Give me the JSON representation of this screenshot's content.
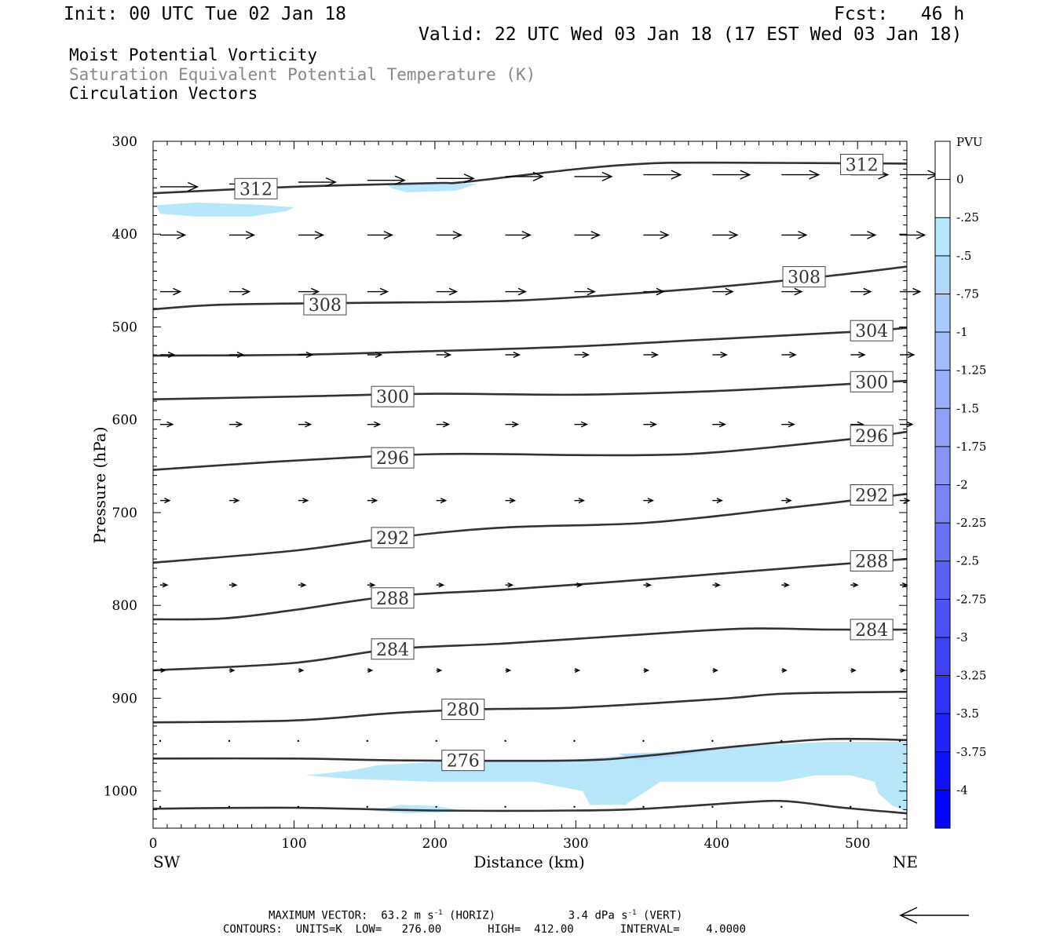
{
  "header": {
    "init": "Init: 00 UTC Tue 02 Jan 18",
    "fcst": "Fcst:   46 h",
    "valid": "Valid: 22 UTC Wed 03 Jan 18 (17 EST Wed 03 Jan 18)"
  },
  "fields": {
    "field1": "Moist Potential Vorticity",
    "field2": "Saturation Equivalent Potential Temperature (K)",
    "field3": "Circulation Vectors"
  },
  "footer": {
    "max_vector_label": "MAXIMUM VECTOR:",
    "horiz_value": "63.2 m s",
    "horiz_exp": "-1",
    "horiz_tag": "(HORIZ)",
    "vert_value": "3.4 dPa s",
    "vert_exp": "-1",
    "vert_tag": "(VERT)",
    "contours_line": "CONTOURS:  UNITS=K  LOW=   276.00       HIGH=  412.00       INTERVAL=    4.0000"
  },
  "chart_data": {
    "type": "cross-section",
    "xlabel": "Distance (km)",
    "ylabel": "Pressure (hPa)",
    "xlim": [
      0,
      535
    ],
    "ylim": [
      1040,
      300
    ],
    "x_ticks": [
      0,
      100,
      200,
      300,
      400,
      500
    ],
    "y_ticks": [
      300,
      400,
      500,
      600,
      700,
      800,
      900,
      1000
    ],
    "x_end_labels": {
      "left": "SW",
      "right": "NE"
    },
    "colorbar": {
      "unit": "PVU",
      "labels": [
        "0",
        "-.25",
        "-.5",
        "-.75",
        "-1",
        "-1.25",
        "-1.5",
        "-1.75",
        "-2",
        "-2.25",
        "-2.5",
        "-2.75",
        "-3",
        "-3.25",
        "-3.5",
        "-3.75",
        "-4"
      ],
      "colors": [
        "#ffffff",
        "#ffffff",
        "#b8e6fb",
        "#b0d8fb",
        "#a9cafa",
        "#a1bcf9",
        "#99aef8",
        "#92a0f7",
        "#8a92f6",
        "#7b82f5",
        "#6c72f5",
        "#5d62f5",
        "#4e52f5",
        "#3f42f5",
        "#3032f5",
        "#2122f6",
        "#1212f7",
        "#0404f8"
      ]
    },
    "contour_color": "#333333",
    "contours": [
      {
        "value": "312",
        "points": [
          [
            0,
            356
          ],
          [
            100,
            349
          ],
          [
            200,
            345
          ],
          [
            220,
            344
          ],
          [
            300,
            330
          ],
          [
            350,
            324
          ],
          [
            400,
            323
          ],
          [
            535,
            324
          ]
        ],
        "labels": [
          [
            73,
            351
          ],
          [
            503,
            325
          ]
        ]
      },
      {
        "value": "308",
        "points": [
          [
            0,
            481
          ],
          [
            50,
            476
          ],
          [
            150,
            474
          ],
          [
            250,
            472
          ],
          [
            330,
            465
          ],
          [
            400,
            457
          ],
          [
            480,
            445
          ],
          [
            535,
            435
          ]
        ],
        "labels": [
          [
            122,
            476
          ],
          [
            462,
            446
          ]
        ]
      },
      {
        "value": "304",
        "points": [
          [
            0,
            531
          ],
          [
            100,
            530
          ],
          [
            200,
            526
          ],
          [
            300,
            521
          ],
          [
            400,
            513
          ],
          [
            500,
            505
          ],
          [
            535,
            501
          ]
        ],
        "labels": [
          [
            510,
            504
          ]
        ]
      },
      {
        "value": "300",
        "points": [
          [
            0,
            578
          ],
          [
            100,
            575
          ],
          [
            200,
            572
          ],
          [
            300,
            573
          ],
          [
            400,
            569
          ],
          [
            500,
            561
          ],
          [
            535,
            558
          ]
        ],
        "labels": [
          [
            170,
            575
          ],
          [
            510,
            559
          ]
        ]
      },
      {
        "value": "296",
        "points": [
          [
            0,
            654
          ],
          [
            100,
            644
          ],
          [
            200,
            637
          ],
          [
            300,
            638
          ],
          [
            350,
            638
          ],
          [
            400,
            635
          ],
          [
            500,
            620
          ],
          [
            535,
            613
          ]
        ],
        "labels": [
          [
            170,
            641
          ],
          [
            510,
            617
          ]
        ]
      },
      {
        "value": "292",
        "points": [
          [
            0,
            754
          ],
          [
            100,
            741
          ],
          [
            170,
            727
          ],
          [
            250,
            716
          ],
          [
            350,
            711
          ],
          [
            450,
            695
          ],
          [
            535,
            680
          ]
        ],
        "labels": [
          [
            170,
            727
          ],
          [
            510,
            681
          ]
        ]
      },
      {
        "value": "288",
        "points": [
          [
            0,
            815
          ],
          [
            50,
            814
          ],
          [
            100,
            805
          ],
          [
            170,
            790
          ],
          [
            250,
            783
          ],
          [
            350,
            772
          ],
          [
            450,
            760
          ],
          [
            535,
            750
          ]
        ],
        "labels": [
          [
            170,
            792
          ],
          [
            510,
            752
          ]
        ]
      },
      {
        "value": "284",
        "points": [
          [
            0,
            870
          ],
          [
            100,
            862
          ],
          [
            170,
            847
          ],
          [
            250,
            841
          ],
          [
            350,
            831
          ],
          [
            420,
            825
          ],
          [
            480,
            826
          ],
          [
            535,
            826
          ]
        ],
        "labels": [
          [
            170,
            847
          ],
          [
            510,
            826
          ]
        ]
      },
      {
        "value": "280",
        "points": [
          [
            0,
            926
          ],
          [
            100,
            924
          ],
          [
            170,
            916
          ],
          [
            230,
            912
          ],
          [
            300,
            910
          ],
          [
            400,
            901
          ],
          [
            450,
            895
          ],
          [
            535,
            893
          ]
        ],
        "labels": [
          [
            220,
            912
          ]
        ]
      },
      {
        "value": "276",
        "points": [
          [
            0,
            965
          ],
          [
            100,
            965
          ],
          [
            180,
            967
          ],
          [
            300,
            967
          ],
          [
            350,
            962
          ],
          [
            420,
            951
          ],
          [
            480,
            944
          ],
          [
            535,
            945
          ]
        ],
        "labels": [
          [
            220,
            967
          ]
        ]
      },
      {
        "value": "",
        "points": [
          [
            0,
            1019
          ],
          [
            100,
            1018
          ],
          [
            200,
            1021
          ],
          [
            300,
            1021
          ],
          [
            350,
            1019
          ],
          [
            420,
            1012
          ],
          [
            450,
            1011
          ],
          [
            490,
            1018
          ],
          [
            535,
            1024
          ]
        ],
        "labels": []
      }
    ],
    "pv_regions": [
      {
        "color": "#b8e6fb",
        "points": [
          [
            2,
            369
          ],
          [
            30,
            366
          ],
          [
            70,
            368
          ],
          [
            100,
            371
          ],
          [
            95,
            375
          ],
          [
            70,
            381
          ],
          [
            30,
            381
          ],
          [
            5,
            378
          ]
        ]
      },
      {
        "color": "#b8e6fb",
        "points": [
          [
            165,
            346
          ],
          [
            210,
            344
          ],
          [
            230,
            346
          ],
          [
            215,
            353
          ],
          [
            180,
            355
          ],
          [
            170,
            351
          ]
        ]
      },
      {
        "color": "#b8e6fb",
        "points": [
          [
            108,
            983
          ],
          [
            140,
            978
          ],
          [
            160,
            972
          ],
          [
            210,
            968
          ],
          [
            300,
            966
          ],
          [
            350,
            960
          ],
          [
            400,
            953
          ],
          [
            440,
            950
          ],
          [
            480,
            947
          ],
          [
            535,
            947
          ],
          [
            535,
            1022
          ],
          [
            525,
            1016
          ],
          [
            515,
            1003
          ],
          [
            512,
            990
          ],
          [
            495,
            983
          ],
          [
            470,
            983
          ],
          [
            445,
            990
          ],
          [
            400,
            990
          ],
          [
            360,
            990
          ],
          [
            345,
            1005
          ],
          [
            335,
            1015
          ],
          [
            325,
            1015
          ],
          [
            310,
            1015
          ],
          [
            305,
            1000
          ],
          [
            270,
            990
          ],
          [
            200,
            990
          ],
          [
            140,
            987
          ]
        ]
      },
      {
        "color": "#b0d8fb",
        "points": [
          [
            330,
            960
          ],
          [
            370,
            958
          ],
          [
            395,
            957
          ],
          [
            375,
            962
          ],
          [
            345,
            967
          ]
        ]
      },
      {
        "color": "#b8e6fb",
        "points": [
          [
            155,
            1021
          ],
          [
            175,
            1015
          ],
          [
            200,
            1016
          ],
          [
            225,
            1022
          ],
          [
            180,
            1024
          ]
        ]
      }
    ],
    "vector_rows": [
      {
        "p": 349,
        "y_shift": [
          0,
          -3,
          -5,
          -7,
          -9,
          -11,
          -11,
          -13,
          -13,
          -13,
          -13,
          -13
        ],
        "lengths": [
          48,
          48,
          48,
          48,
          48,
          48,
          48,
          48,
          48,
          48,
          48,
          48
        ]
      },
      {
        "p": 401,
        "lengths": [
          32,
          32,
          32,
          32,
          32,
          32,
          32,
          32,
          32,
          32,
          32,
          32
        ]
      },
      {
        "p": 462,
        "lengths": [
          26,
          26,
          26,
          26,
          26,
          26,
          26,
          26,
          26,
          26,
          26,
          26
        ]
      },
      {
        "p": 530,
        "lengths": [
          18,
          18,
          18,
          18,
          18,
          18,
          18,
          18,
          18,
          18,
          18,
          18
        ]
      },
      {
        "p": 605,
        "lengths": [
          16,
          16,
          16,
          16,
          16,
          16,
          16,
          16,
          16,
          16,
          16,
          16
        ]
      },
      {
        "p": 687,
        "lengths": [
          12,
          12,
          12,
          12,
          12,
          12,
          12,
          12,
          12,
          12,
          12,
          12
        ]
      },
      {
        "p": 778,
        "lengths": [
          9,
          9,
          9,
          9,
          9,
          9,
          9,
          9,
          9,
          9,
          9,
          9
        ]
      },
      {
        "p": 870,
        "lengths": [
          6,
          6,
          6,
          6,
          6,
          6,
          6,
          6,
          6,
          6,
          6,
          6
        ]
      },
      {
        "p": 946,
        "lengths": [
          2,
          2,
          2,
          2,
          2,
          2,
          2,
          2,
          2,
          2,
          2,
          2
        ]
      },
      {
        "p": 1017,
        "lengths": [
          1,
          1,
          1,
          1,
          1,
          1,
          1,
          1,
          1,
          1,
          1,
          1
        ]
      }
    ],
    "vector_x": [
      5,
      54,
      103,
      152,
      201,
      250,
      299,
      348,
      397,
      446,
      495,
      530
    ]
  }
}
